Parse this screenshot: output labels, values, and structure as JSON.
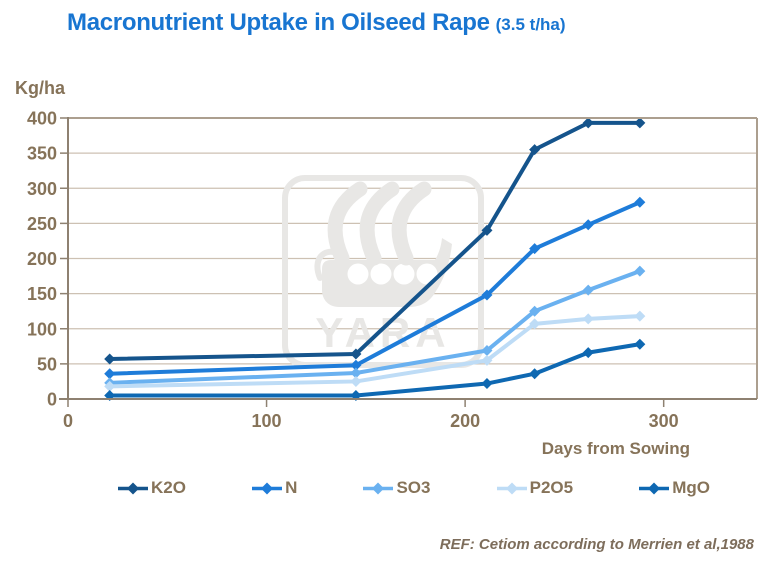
{
  "header": {
    "title": "Macronutrient Uptake in Oilseed Rape",
    "subtitle": "(3.5 t/ha)"
  },
  "axes": {
    "y_title": "Kg/ha",
    "x_title": "Days from Sowing"
  },
  "footer": {
    "reference": "REF: Cetiom according to Merrien et al,1988"
  },
  "watermark": {
    "text": "YARA",
    "icon": "viking-ship-logo"
  },
  "colors": {
    "title_blue": "#1875D1",
    "label_brown": "#867359",
    "axis_line": "#8E8171",
    "grid_line": "#CDC1B3",
    "plot_border": "#AC9F8F",
    "watermark_gray": "#E8E7E5",
    "k2o": "#15548C",
    "n": "#1E7CD9",
    "so3": "#6AB1F0",
    "p2o5": "#BEDCF6",
    "mgo": "#0E68B2"
  },
  "chart_data": {
    "type": "line",
    "title": "Macronutrient Uptake in Oilseed Rape (3.5 t/ha)",
    "xlabel": "Days from Sowing",
    "ylabel": "Kg/ha",
    "xlim": [
      0,
      347
    ],
    "ylim": [
      0,
      400
    ],
    "x_ticks": [
      0,
      100,
      200,
      300
    ],
    "y_ticks": [
      0,
      50,
      100,
      150,
      200,
      250,
      300,
      350,
      400
    ],
    "grid": true,
    "legend_position": "bottom",
    "marker": "diamond",
    "x_days": [
      21,
      145,
      211,
      235,
      262,
      288
    ],
    "series": [
      {
        "name": "K2O",
        "color": "#15548C",
        "values": [
          57,
          64,
          240,
          355,
          393,
          393
        ]
      },
      {
        "name": "N",
        "color": "#1E7CD9",
        "values": [
          36,
          48,
          148,
          214,
          248,
          280
        ]
      },
      {
        "name": "SO3",
        "color": "#6AB1F0",
        "values": [
          23,
          37,
          69,
          125,
          155,
          182
        ]
      },
      {
        "name": "P2O5",
        "color": "#BEDCF6",
        "values": [
          18,
          25,
          55,
          107,
          114,
          118
        ]
      },
      {
        "name": "MgO",
        "color": "#0E68B2",
        "values": [
          5,
          5,
          22,
          36,
          66,
          78
        ]
      }
    ]
  }
}
